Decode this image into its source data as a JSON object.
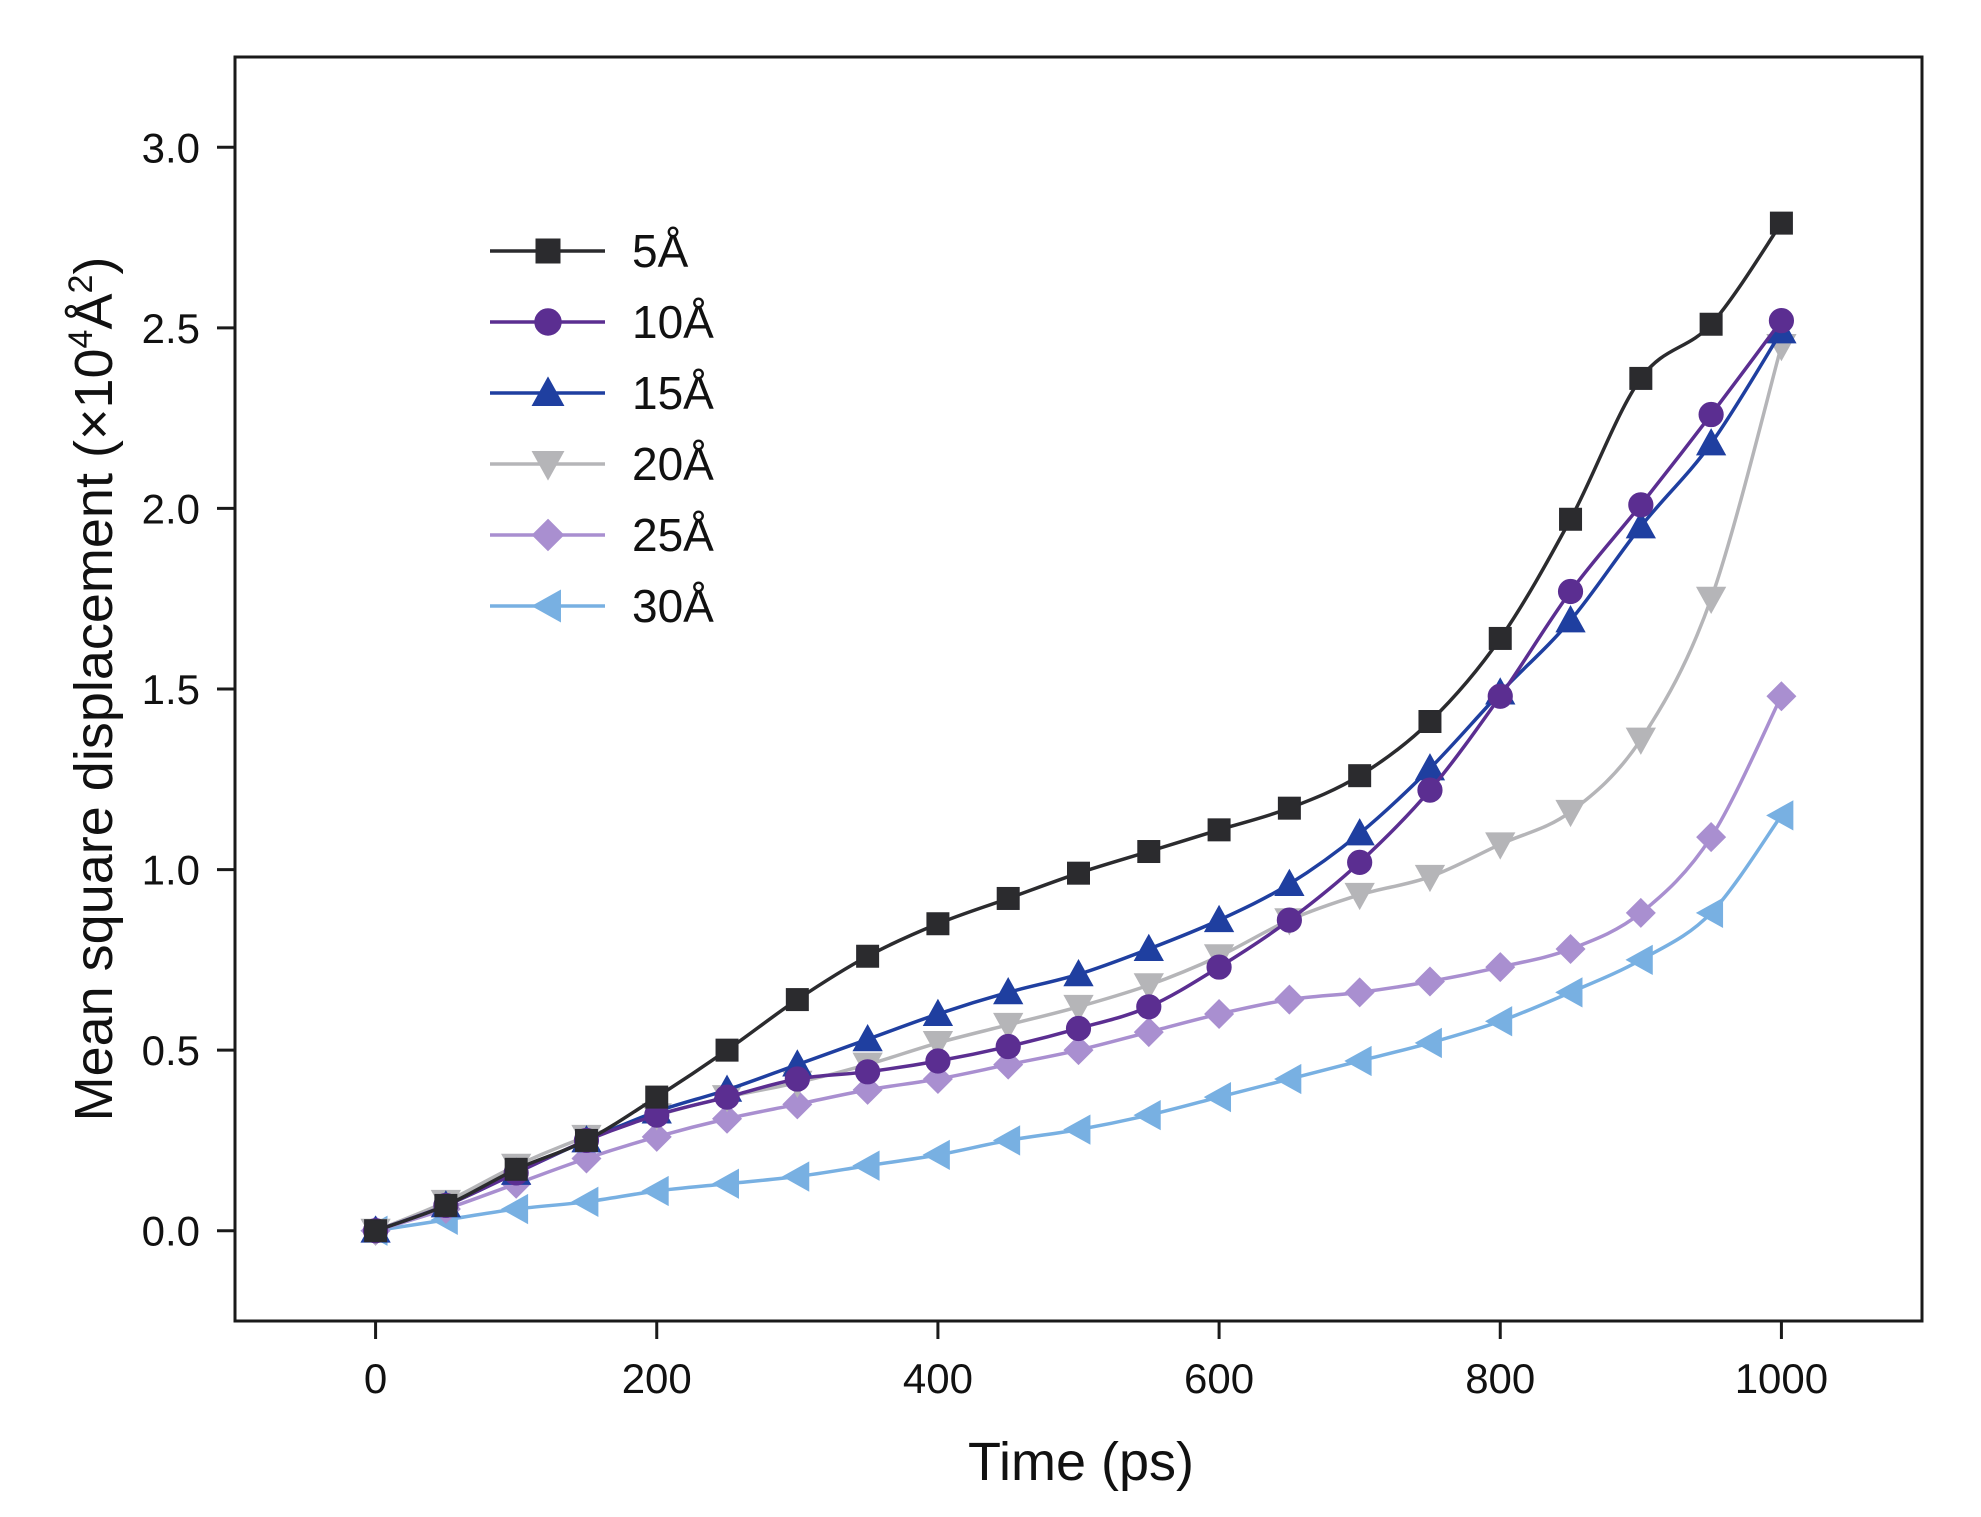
{
  "chart_data": {
    "type": "line",
    "title": "",
    "xlabel": "Time (ps)",
    "ylabel": {
      "pre": "Mean square displacement (×10",
      "sup1": "4",
      "mid": "Å",
      "sup2": "2",
      "post": ")"
    },
    "xlim": [
      -100,
      1100
    ],
    "ylim": [
      -0.25,
      3.25
    ],
    "xticks": [
      0,
      200,
      400,
      600,
      800,
      1000
    ],
    "xtick_labels": [
      "0",
      "200",
      "400",
      "600",
      "800",
      "1000"
    ],
    "yticks": [
      0.0,
      0.5,
      1.0,
      1.5,
      2.0,
      2.5,
      3.0
    ],
    "ytick_labels": [
      "0.0",
      "0.5",
      "1.0",
      "1.5",
      "2.0",
      "2.5",
      "3.0"
    ],
    "grid": false,
    "legend_position": "top-left",
    "x": [
      0,
      50,
      100,
      150,
      200,
      250,
      300,
      350,
      400,
      450,
      500,
      550,
      600,
      650,
      700,
      750,
      800,
      850,
      900,
      950,
      1000
    ],
    "series": [
      {
        "name": "5Å",
        "color": "#2b2b2e",
        "marker": "square",
        "values": [
          0.0,
          0.07,
          0.17,
          0.25,
          0.37,
          0.5,
          0.64,
          0.76,
          0.85,
          0.92,
          0.99,
          1.05,
          1.11,
          1.17,
          1.26,
          1.41,
          1.64,
          1.97,
          2.36,
          2.51,
          2.79
        ]
      },
      {
        "name": "10Å",
        "color": "#5b2e91",
        "marker": "circle",
        "values": [
          0.0,
          0.07,
          0.16,
          0.25,
          0.32,
          0.37,
          0.42,
          0.44,
          0.47,
          0.51,
          0.56,
          0.62,
          0.73,
          0.86,
          1.02,
          1.22,
          1.48,
          1.77,
          2.01,
          2.26,
          2.52
        ]
      },
      {
        "name": "15Å",
        "color": "#1f3fa0",
        "marker": "triangle-up",
        "values": [
          0.0,
          0.07,
          0.16,
          0.25,
          0.33,
          0.39,
          0.46,
          0.53,
          0.6,
          0.66,
          0.71,
          0.78,
          0.86,
          0.96,
          1.1,
          1.28,
          1.49,
          1.69,
          1.95,
          2.18,
          2.49
        ]
      },
      {
        "name": "20Å",
        "color": "#b5b5b8",
        "marker": "triangle-down",
        "values": [
          0.0,
          0.08,
          0.18,
          0.26,
          0.32,
          0.37,
          0.41,
          0.46,
          0.52,
          0.57,
          0.62,
          0.68,
          0.76,
          0.86,
          0.93,
          0.98,
          1.07,
          1.16,
          1.36,
          1.75,
          2.45
        ]
      },
      {
        "name": "25Å",
        "color": "#a98fd0",
        "marker": "diamond",
        "values": [
          0.0,
          0.06,
          0.13,
          0.2,
          0.26,
          0.31,
          0.35,
          0.39,
          0.42,
          0.46,
          0.5,
          0.55,
          0.6,
          0.64,
          0.66,
          0.69,
          0.73,
          0.78,
          0.88,
          1.09,
          1.48
        ]
      },
      {
        "name": "30Å",
        "color": "#78b0e2",
        "marker": "triangle-left",
        "values": [
          0.0,
          0.03,
          0.06,
          0.08,
          0.11,
          0.13,
          0.15,
          0.18,
          0.21,
          0.25,
          0.28,
          0.32,
          0.37,
          0.42,
          0.47,
          0.52,
          0.58,
          0.66,
          0.75,
          0.88,
          1.15
        ]
      }
    ]
  }
}
